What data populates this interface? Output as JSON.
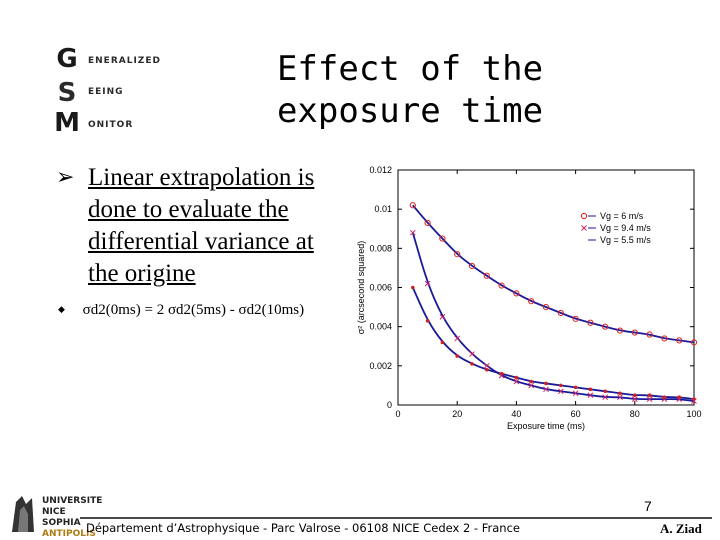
{
  "logo": {
    "letters": [
      "G",
      "S",
      "M"
    ],
    "words": [
      "ENERALIZED",
      "EEING",
      "ONITOR"
    ]
  },
  "slide": {
    "title": "Effect of the exposure time",
    "bullet_main": "Linear extrapolation is done to evaluate the differential variance at the origine",
    "bullet_sub": "σd2(0ms) = 2 σd2(5ms) - σd2(10ms)",
    "page_number": "7"
  },
  "footer": {
    "text": "Département d’Astrophysique - Parc Valrose - 06108 NICE Cedex 2 - France",
    "author": "A. Ziad"
  },
  "univ_logo": {
    "lines": [
      "UNIVERSITE",
      "NICE",
      "SOPHIA",
      "ANTIPOLIS"
    ]
  },
  "chart_data": {
    "type": "scatter",
    "xlabel": "Exposure time (ms)",
    "ylabel": "σ² (arcsecond squared)",
    "xlim": [
      0,
      100
    ],
    "ylim": [
      0,
      0.012
    ],
    "xticks": [
      0,
      20,
      40,
      60,
      80,
      100
    ],
    "yticks": [
      0,
      0.002,
      0.004,
      0.006,
      0.008,
      0.01,
      0.012
    ],
    "ytick_labels": [
      "0",
      "0.002",
      "0.004",
      "0.006",
      "0.008",
      "0.01",
      "0.012"
    ],
    "legend_position": "top-right",
    "series": [
      {
        "name": "Vg = 6 m/s",
        "marker": "circle",
        "color": "#dd2222",
        "x": [
          5,
          10,
          15,
          20,
          25,
          30,
          35,
          40,
          45,
          50,
          55,
          60,
          65,
          70,
          75,
          80,
          85,
          90,
          95,
          100
        ],
        "y": [
          0.0102,
          0.0093,
          0.0085,
          0.0077,
          0.0071,
          0.0066,
          0.0061,
          0.0057,
          0.0053,
          0.005,
          0.0047,
          0.0044,
          0.0042,
          0.004,
          0.0038,
          0.0037,
          0.0036,
          0.0034,
          0.0033,
          0.0032
        ]
      },
      {
        "name": "Vg = 9.4 m/s",
        "marker": "x",
        "color": "#cc2266",
        "x": [
          5,
          10,
          15,
          20,
          25,
          30,
          35,
          40,
          45,
          50,
          55,
          60,
          65,
          70,
          75,
          80,
          85,
          90,
          95,
          100
        ],
        "y": [
          0.0088,
          0.0062,
          0.0045,
          0.0034,
          0.0026,
          0.002,
          0.0015,
          0.0012,
          0.001,
          0.0008,
          0.0007,
          0.0006,
          0.0005,
          0.0004,
          0.0004,
          0.0003,
          0.0003,
          0.0003,
          0.0003,
          0.0002
        ]
      },
      {
        "name": "Vg = 5.5 m/s",
        "marker": "dot",
        "color": "#cc2222",
        "x": [
          5,
          10,
          15,
          20,
          25,
          30,
          35,
          40,
          45,
          50,
          55,
          60,
          65,
          70,
          75,
          80,
          85,
          90,
          95,
          100
        ],
        "y": [
          0.006,
          0.0043,
          0.0032,
          0.0025,
          0.0021,
          0.0018,
          0.0016,
          0.0014,
          0.0012,
          0.0011,
          0.001,
          0.0009,
          0.0008,
          0.0007,
          0.0006,
          0.0005,
          0.0005,
          0.0004,
          0.0004,
          0.0003
        ]
      }
    ]
  }
}
